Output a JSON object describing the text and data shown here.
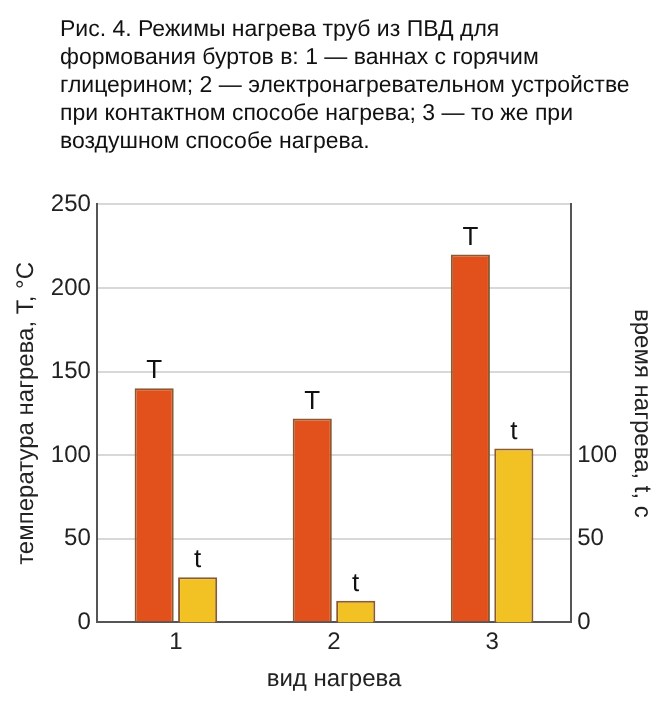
{
  "chart_data": {
    "type": "bar",
    "title": "Рис. 4. Режимы нагрева труб из ПВД для формования буртов в: 1 — ваннах с горячим глицерином; 2 — электронагревательном устройстве при контактном способе нагрева; 3 — то же при воздушном способе нагрева.",
    "categories": [
      "1",
      "2",
      "3"
    ],
    "xlabel": "вид нагрева",
    "ylabel": "температура нагрева, T, °С",
    "y2label": "время нагрева, t, с",
    "series": [
      {
        "name": "T",
        "color": "#e2501c",
        "values": [
          140,
          122,
          220
        ]
      },
      {
        "name": "t",
        "color": "#f2c224",
        "values": [
          27,
          13,
          104
        ],
        "axis": "y2"
      }
    ],
    "ylim": [
      0,
      250
    ],
    "yticks": [
      0,
      50,
      100,
      150,
      200,
      250
    ],
    "y2lim": [
      0,
      250
    ],
    "y2ticks": [
      0,
      50,
      100
    ],
    "grid": "y",
    "legend": false
  }
}
